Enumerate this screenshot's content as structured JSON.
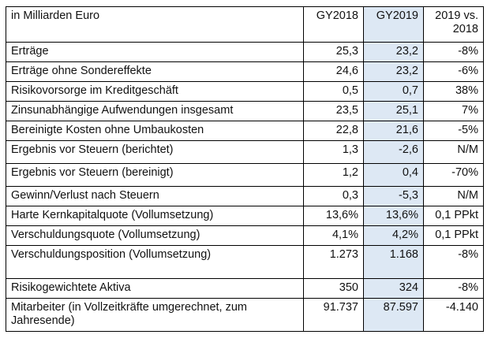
{
  "table": {
    "header": {
      "label": "in Milliarden Euro",
      "col1": "GY2018",
      "col2": "GY2019",
      "col3_line1": "2019 vs.",
      "col3_line2": "2018"
    },
    "highlight_color": "#dde8f4",
    "rows": [
      {
        "label": "Erträge",
        "gy2018": "25,3",
        "gy2019": "23,2",
        "delta": "-8%"
      },
      {
        "label": "Erträge ohne Sondereffekte",
        "gy2018": "24,6",
        "gy2019": "23,2",
        "delta": "-6%"
      },
      {
        "label": "Risikovorsorge im Kreditgeschäft",
        "gy2018": "0,5",
        "gy2019": "0,7",
        "delta": "38%"
      },
      {
        "label": "Zinsunabhängige Aufwendungen insgesamt",
        "gy2018": "23,5",
        "gy2019": "25,1",
        "delta": "7%"
      },
      {
        "label": "Bereinigte Kosten ohne Umbaukosten",
        "gy2018": "22,8",
        "gy2019": "21,6",
        "delta": "-5%"
      },
      {
        "label": "Ergebnis vor Steuern (berichtet)",
        "gy2018": "1,3",
        "gy2019": "-2,6",
        "delta": "N/M"
      },
      {
        "label": "Ergebnis vor Steuern (bereinigt)",
        "gy2018": "1,2",
        "gy2019": "0,4",
        "delta": "-70%"
      },
      {
        "label": "Gewinn/Verlust nach Steuern",
        "gy2018": "0,3",
        "gy2019": "-5,3",
        "delta": "N/M"
      },
      {
        "label": "Harte Kernkapitalquote (Vollumsetzung)",
        "gy2018": "13,6%",
        "gy2019": "13,6%",
        "delta": "0,1 PPkt"
      },
      {
        "label": "Verschuldungsquote (Vollumsetzung)",
        "gy2018": "4,1%",
        "gy2019": "4,2%",
        "delta": "0,1 PPkt"
      },
      {
        "label": "Verschuldungsposition (Vollumsetzung)",
        "gy2018": "1.273",
        "gy2019": "1.168",
        "delta": "-8%"
      },
      {
        "label": "Risikogewichtete Aktiva",
        "gy2018": "350",
        "gy2019": "324",
        "delta": "-8%"
      },
      {
        "label": "Mitarbeiter (in Vollzeitkräfte umgerechnet, zum Jahresende)",
        "gy2018": "91.737",
        "gy2019": "87.597",
        "delta": "-4.140"
      }
    ]
  }
}
